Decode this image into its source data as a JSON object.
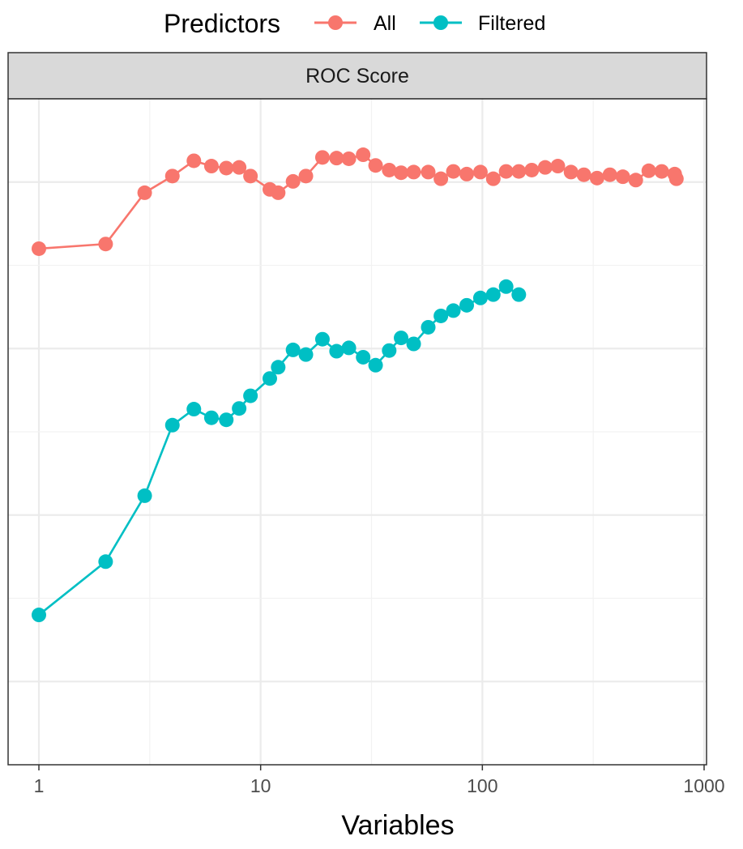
{
  "legend": {
    "title": "Predictors",
    "items": [
      {
        "label": "All",
        "color": "#F8766D"
      },
      {
        "label": "Filtered",
        "color": "#00BFC4"
      }
    ]
  },
  "chart_data": {
    "type": "line",
    "facet_label": "ROC Score",
    "xlabel": "Variables",
    "ylabel": "",
    "xscale": "log10",
    "xlim": [
      0.85,
      1000
    ],
    "ylim": [
      0,
      1
    ],
    "x_ticks": [
      1,
      10,
      100,
      1000
    ],
    "x_tick_labels": [
      "1",
      "10",
      "100",
      "1000"
    ],
    "grid": true,
    "legend_position": "top",
    "series": [
      {
        "name": "All",
        "color": "#F8766D",
        "points": [
          [
            1,
            0.775
          ],
          [
            2,
            0.782
          ],
          [
            3,
            0.859
          ],
          [
            4,
            0.884
          ],
          [
            5,
            0.907
          ],
          [
            6,
            0.899
          ],
          [
            7,
            0.896
          ],
          [
            8,
            0.897
          ],
          [
            9,
            0.884
          ],
          [
            11,
            0.864
          ],
          [
            12,
            0.859
          ],
          [
            14,
            0.876
          ],
          [
            16,
            0.884
          ],
          [
            19,
            0.912
          ],
          [
            22,
            0.911
          ],
          [
            25,
            0.91
          ],
          [
            29,
            0.916
          ],
          [
            33,
            0.9
          ],
          [
            38,
            0.893
          ],
          [
            43,
            0.889
          ],
          [
            49,
            0.89
          ],
          [
            57,
            0.89
          ],
          [
            65,
            0.88
          ],
          [
            74,
            0.891
          ],
          [
            85,
            0.887
          ],
          [
            98,
            0.89
          ],
          [
            112,
            0.88
          ],
          [
            128,
            0.891
          ],
          [
            146,
            0.891
          ],
          [
            167,
            0.893
          ],
          [
            192,
            0.897
          ],
          [
            219,
            0.899
          ],
          [
            251,
            0.89
          ],
          [
            287,
            0.886
          ],
          [
            329,
            0.881
          ],
          [
            376,
            0.886
          ],
          [
            430,
            0.883
          ],
          [
            492,
            0.878
          ],
          [
            563,
            0.892
          ],
          [
            644,
            0.891
          ],
          [
            737,
            0.887
          ],
          [
            750,
            0.88
          ]
        ]
      },
      {
        "name": "Filtered",
        "color": "#00BFC4",
        "points": [
          [
            1,
            0.225
          ],
          [
            2,
            0.305
          ],
          [
            3,
            0.404
          ],
          [
            4,
            0.51
          ],
          [
            5,
            0.534
          ],
          [
            6,
            0.521
          ],
          [
            7,
            0.518
          ],
          [
            8,
            0.535
          ],
          [
            9,
            0.554
          ],
          [
            11,
            0.58
          ],
          [
            12,
            0.597
          ],
          [
            14,
            0.623
          ],
          [
            16,
            0.616
          ],
          [
            19,
            0.639
          ],
          [
            22,
            0.621
          ],
          [
            25,
            0.626
          ],
          [
            29,
            0.612
          ],
          [
            33,
            0.6
          ],
          [
            38,
            0.622
          ],
          [
            43,
            0.641
          ],
          [
            49,
            0.632
          ],
          [
            57,
            0.657
          ],
          [
            65,
            0.674
          ],
          [
            74,
            0.682
          ],
          [
            85,
            0.69
          ],
          [
            98,
            0.701
          ],
          [
            112,
            0.706
          ],
          [
            128,
            0.718
          ],
          [
            146,
            0.706
          ]
        ]
      }
    ]
  }
}
